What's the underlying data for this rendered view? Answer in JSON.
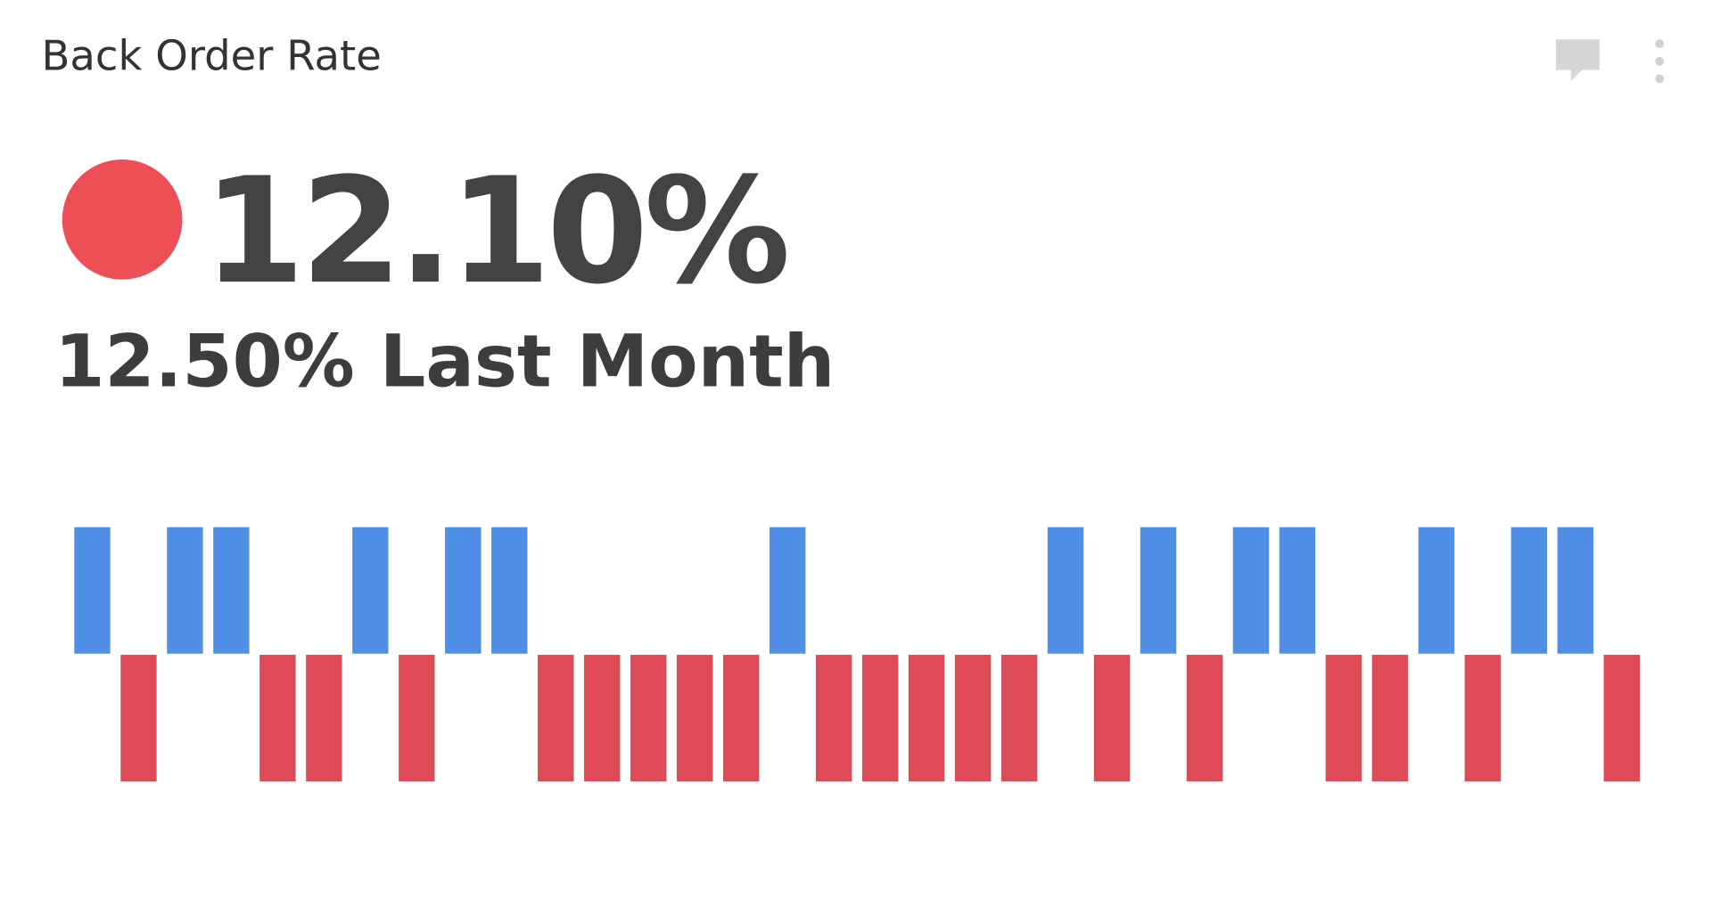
{
  "header": {
    "title": "Back Order Rate"
  },
  "kpi": {
    "value": "12.10%",
    "comparison": "12.50% Last Month",
    "status_color": "#ec4f55"
  },
  "chart_data": {
    "type": "winloss",
    "values": [
      1,
      -1,
      1,
      1,
      -1,
      -1,
      1,
      -1,
      1,
      1,
      -1,
      -1,
      -1,
      -1,
      -1,
      1,
      -1,
      -1,
      -1,
      -1,
      -1,
      1,
      -1,
      1,
      -1,
      1,
      1,
      -1,
      -1,
      1,
      -1,
      1,
      1,
      -1
    ],
    "up_color": "#4f8fe6",
    "down_color": "#de4a55"
  }
}
